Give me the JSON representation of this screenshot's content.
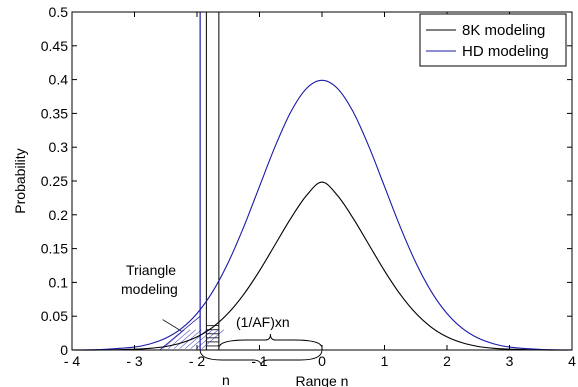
{
  "chart_data": {
    "type": "line",
    "title": "",
    "xlabel": "Range n",
    "ylabel": "Probability",
    "xlim": [
      -4,
      4
    ],
    "ylim": [
      0,
      0.5
    ],
    "xticks": [
      -4,
      -3,
      -2,
      -1,
      0,
      1,
      2,
      3,
      4
    ],
    "xtick_labels": [
      "- 4",
      "- 3",
      "- 2",
      "- 1",
      "0",
      "1",
      "2",
      "3",
      "4"
    ],
    "yticks": [
      0,
      0.05,
      0.1,
      0.15,
      0.2,
      0.25,
      0.3,
      0.35,
      0.4,
      0.45,
      0.5
    ],
    "ytick_labels": [
      "0",
      "0.05",
      "0.1",
      "0.15",
      "0.2",
      "0.25",
      "0.3",
      "0.35",
      "0.4",
      "0.45",
      "0.5"
    ],
    "grid": false,
    "legend_position": "top-right",
    "series": [
      {
        "name": "8K modeling",
        "color": "#000000",
        "x": [
          -4,
          -3.5,
          -3,
          -2.75,
          -2.5,
          -2.25,
          -2,
          -1.75,
          -1.5,
          -1.25,
          -1,
          -0.75,
          -0.5,
          -0.25,
          0,
          0.25,
          0.5,
          0.75,
          1,
          1.25,
          1.5,
          1.75,
          2,
          2.25,
          2.5,
          2.75,
          3,
          3.5,
          4
        ],
        "y": [
          0.0,
          0.0,
          0.0012,
          0.0025,
          0.0052,
          0.0105,
          0.0194,
          0.0336,
          0.0545,
          0.0826,
          0.1172,
          0.1559,
          0.1946,
          0.2283,
          0.2484,
          0.2283,
          0.1946,
          0.1559,
          0.1172,
          0.0826,
          0.0545,
          0.0336,
          0.0194,
          0.0105,
          0.0052,
          0.0025,
          0.0012,
          0.0,
          0.0
        ]
      },
      {
        "name": "HD modeling",
        "color": "#1a1aa8",
        "x": [
          -4,
          -3.5,
          -3,
          -2.75,
          -2.5,
          -2.25,
          -2,
          -1.75,
          -1.5,
          -1.25,
          -1,
          -0.75,
          -0.5,
          -0.25,
          0,
          0.25,
          0.5,
          0.75,
          1,
          1.25,
          1.5,
          1.75,
          2,
          2.25,
          2.5,
          2.75,
          3,
          3.5,
          4
        ],
        "y": [
          0.0001,
          0.0009,
          0.0044,
          0.0091,
          0.0175,
          0.0317,
          0.054,
          0.0863,
          0.1295,
          0.1826,
          0.242,
          0.3011,
          0.3521,
          0.3867,
          0.3989,
          0.3867,
          0.3521,
          0.3011,
          0.242,
          0.1826,
          0.1295,
          0.0863,
          0.054,
          0.0317,
          0.0175,
          0.0091,
          0.0044,
          0.0009,
          0.0001
        ]
      }
    ],
    "annotations": {
      "triangle_label_1": "Triangle",
      "triangle_label_2": "modeling",
      "af_label": "(1/AF)xn",
      "n_label": "n"
    }
  },
  "colors": {
    "black_curve": "#000000",
    "blue_curve": "#1a1aa8",
    "axis": "#000000",
    "background": "#ffffff"
  }
}
